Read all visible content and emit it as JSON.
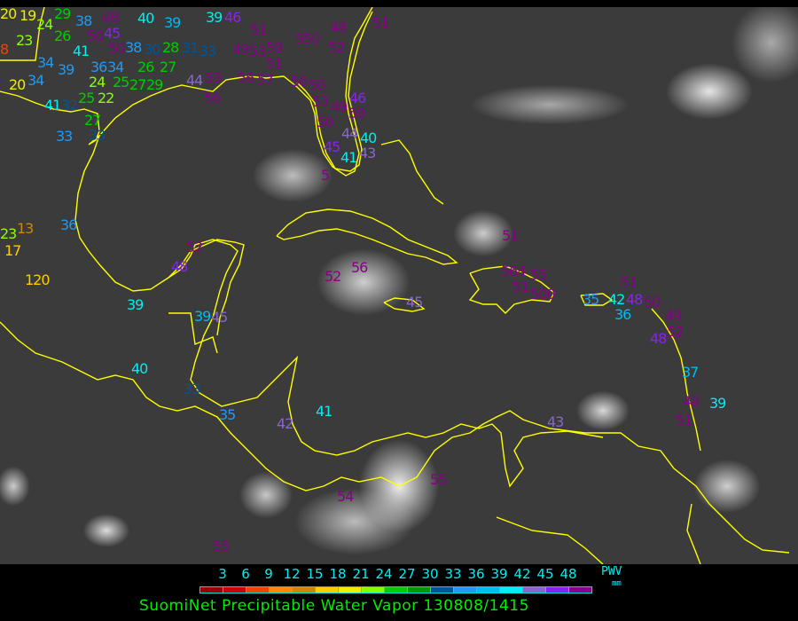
{
  "title": "SuomiNet Precipitable Water Vapor 130808/1415",
  "legend": {
    "unit_label": "PWV",
    "unit": "mm",
    "ticks": [
      "3",
      "6",
      "9",
      "12",
      "15",
      "18",
      "21",
      "24",
      "27",
      "30",
      "33",
      "36",
      "39",
      "42",
      "45",
      "48"
    ],
    "colors": [
      "#990000",
      "#cc0000",
      "#ee4400",
      "#ff8800",
      "#cc8800",
      "#ffcc00",
      "#eeee00",
      "#88ff00",
      "#00cc00",
      "#009900",
      "#005599",
      "#2299ee",
      "#00bbee",
      "#00eeee",
      "#8866cc",
      "#8822ee",
      "#880088"
    ]
  },
  "map": {
    "coastline_color": "#ffff00",
    "stations": [
      {
        "v": "20",
        "c": "#eeee00"
      },
      {
        "v": "19",
        "c": "#eeee00"
      },
      {
        "v": "24",
        "c": "#88ff00"
      },
      {
        "v": "29",
        "c": "#00cc00"
      },
      {
        "v": "38",
        "c": "#2299ee"
      },
      {
        "v": "48",
        "c": "#880088"
      },
      {
        "v": "40",
        "c": "#00eeee"
      },
      {
        "v": "39",
        "c": "#00bbee"
      },
      {
        "v": "39",
        "c": "#00eeee"
      },
      {
        "v": "46",
        "c": "#8822ee"
      },
      {
        "v": "8",
        "c": "#ee4400"
      },
      {
        "v": "23",
        "c": "#88ff00"
      },
      {
        "v": "26",
        "c": "#00cc00"
      },
      {
        "v": "41",
        "c": "#00eeee"
      },
      {
        "v": "45",
        "c": "#8822ee"
      },
      {
        "v": "50",
        "c": "#880088"
      },
      {
        "v": "38",
        "c": "#2299ee"
      },
      {
        "v": "30",
        "c": "#005599"
      },
      {
        "v": "28",
        "c": "#00cc00"
      },
      {
        "v": "31",
        "c": "#005599"
      },
      {
        "v": "34",
        "c": "#2299ee"
      },
      {
        "v": "39",
        "c": "#2299ee"
      },
      {
        "v": "36",
        "c": "#2299ee"
      },
      {
        "v": "34",
        "c": "#2299ee"
      },
      {
        "v": "26",
        "c": "#00cc00"
      },
      {
        "v": "27",
        "c": "#00cc00"
      },
      {
        "v": "33",
        "c": "#005599"
      },
      {
        "v": "20",
        "c": "#eeee00"
      },
      {
        "v": "34",
        "c": "#2299ee"
      },
      {
        "v": "24",
        "c": "#88ff00"
      },
      {
        "v": "22",
        "c": "#88ff00"
      },
      {
        "v": "25",
        "c": "#00cc00"
      },
      {
        "v": "27",
        "c": "#00cc00"
      },
      {
        "v": "29",
        "c": "#00cc00"
      },
      {
        "v": "44",
        "c": "#8866cc"
      },
      {
        "v": "53",
        "c": "#880088"
      },
      {
        "v": "56",
        "c": "#880088"
      },
      {
        "v": "41",
        "c": "#00eeee"
      },
      {
        "v": "32",
        "c": "#005599"
      },
      {
        "v": "25",
        "c": "#00cc00"
      },
      {
        "v": "33",
        "c": "#2299ee"
      },
      {
        "v": "27",
        "c": "#00cc00"
      },
      {
        "v": "33",
        "c": "#005599"
      },
      {
        "v": "50",
        "c": "#880088"
      },
      {
        "v": "51",
        "c": "#880088"
      },
      {
        "v": "49",
        "c": "#880088"
      },
      {
        "v": "53",
        "c": "#880088"
      },
      {
        "v": "59",
        "c": "#880088"
      },
      {
        "v": "51",
        "c": "#880088"
      },
      {
        "v": "550",
        "c": "#880088"
      },
      {
        "v": "48",
        "c": "#880088"
      },
      {
        "v": "52",
        "c": "#880088"
      },
      {
        "v": "51",
        "c": "#880088"
      },
      {
        "v": "56",
        "c": "#880088"
      },
      {
        "v": "57",
        "c": "#880088"
      },
      {
        "v": "56",
        "c": "#880088"
      },
      {
        "v": "50",
        "c": "#880088"
      },
      {
        "v": "53",
        "c": "#880088"
      },
      {
        "v": "49",
        "c": "#880088"
      },
      {
        "v": "46",
        "c": "#8822ee"
      },
      {
        "v": "50",
        "c": "#880088"
      },
      {
        "v": "50",
        "c": "#880088"
      },
      {
        "v": "44",
        "c": "#8866cc"
      },
      {
        "v": "40",
        "c": "#00eeee"
      },
      {
        "v": "45",
        "c": "#8822ee"
      },
      {
        "v": "43",
        "c": "#8866cc"
      },
      {
        "v": "41",
        "c": "#00eeee"
      },
      {
        "v": "5",
        "c": "#880088"
      },
      {
        "v": "23",
        "c": "#88ff00"
      },
      {
        "v": "13",
        "c": "#cc8800"
      },
      {
        "v": "17",
        "c": "#ffcc00"
      },
      {
        "v": "36",
        "c": "#2299ee"
      },
      {
        "v": "120",
        "c": "#ffcc00"
      },
      {
        "v": "52",
        "c": "#880088"
      },
      {
        "v": "48",
        "c": "#8822ee"
      },
      {
        "v": "39",
        "c": "#00eeee"
      },
      {
        "v": "39",
        "c": "#00bbee"
      },
      {
        "v": "45",
        "c": "#8866cc"
      },
      {
        "v": "52",
        "c": "#880088"
      },
      {
        "v": "56",
        "c": "#880088"
      },
      {
        "v": "45",
        "c": "#8866cc"
      },
      {
        "v": "40",
        "c": "#00eeee"
      },
      {
        "v": "33",
        "c": "#005599"
      },
      {
        "v": "35",
        "c": "#2299ee"
      },
      {
        "v": "42",
        "c": "#8866cc"
      },
      {
        "v": "41",
        "c": "#00eeee"
      },
      {
        "v": "54",
        "c": "#880088"
      },
      {
        "v": "55",
        "c": "#880088"
      },
      {
        "v": "55",
        "c": "#880088"
      },
      {
        "v": "51",
        "c": "#880088"
      },
      {
        "v": "564",
        "c": "#880088"
      },
      {
        "v": "51",
        "c": "#880088"
      },
      {
        "v": "500",
        "c": "#880088"
      },
      {
        "v": "35",
        "c": "#2299ee"
      },
      {
        "v": "42",
        "c": "#00eeee"
      },
      {
        "v": "48",
        "c": "#8822ee"
      },
      {
        "v": "36",
        "c": "#00bbee"
      },
      {
        "v": "51",
        "c": "#880088"
      },
      {
        "v": "50",
        "c": "#880088"
      },
      {
        "v": "49",
        "c": "#880088"
      },
      {
        "v": "52",
        "c": "#880088"
      },
      {
        "v": "48",
        "c": "#8822ee"
      },
      {
        "v": "37",
        "c": "#00bbee"
      },
      {
        "v": "48",
        "c": "#880088"
      },
      {
        "v": "39",
        "c": "#00eeee"
      },
      {
        "v": "51",
        "c": "#880088"
      },
      {
        "v": "43",
        "c": "#8866cc"
      },
      {
        "v": "55",
        "c": "#880088"
      }
    ]
  }
}
